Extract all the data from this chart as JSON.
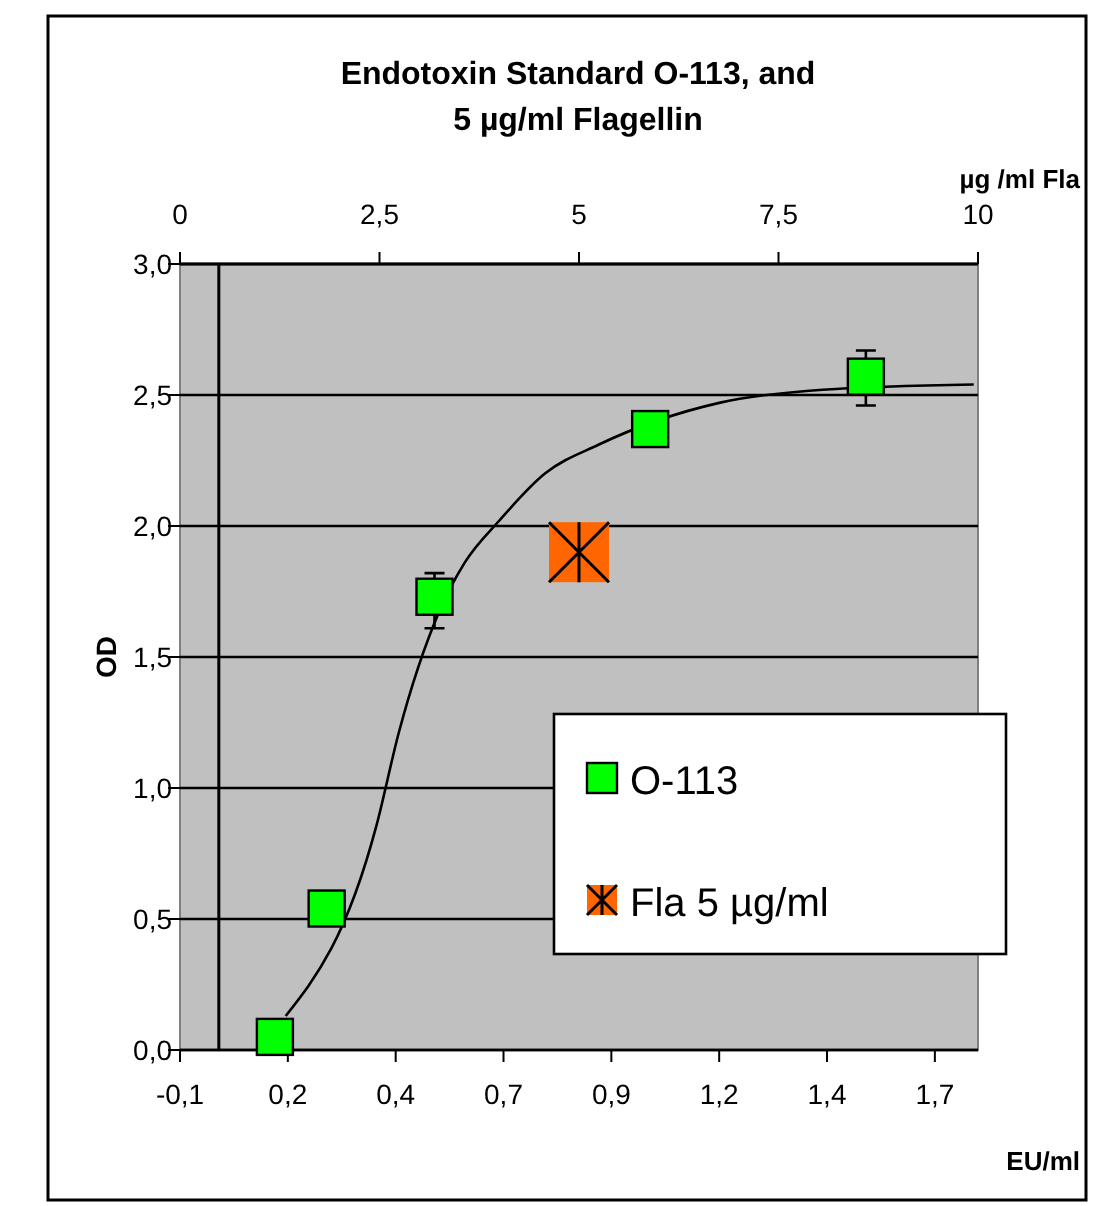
{
  "chart_data": {
    "type": "scatter",
    "title": "Endotoxin  Standard O-113, and\n5 µg/ml Flagellin",
    "xlabel": "EU/ml",
    "ylabel": "OD",
    "x2label": "µg /ml Fla",
    "xlim": [
      -0.09,
      1.76
    ],
    "xticks": [
      {
        "value": -0.09,
        "label": "-0,1"
      },
      {
        "value": 0.16,
        "label": "0,2"
      },
      {
        "value": 0.41,
        "label": "0,4"
      },
      {
        "value": 0.66,
        "label": "0,7"
      },
      {
        "value": 0.91,
        "label": "0,9"
      },
      {
        "value": 1.16,
        "label": "1,2"
      },
      {
        "value": 1.41,
        "label": "1,4"
      },
      {
        "value": 1.66,
        "label": "1,7"
      }
    ],
    "x2lim": [
      0,
      10
    ],
    "x2ticks": [
      0,
      {
        "value": 2.5,
        "label": "2,5"
      },
      5,
      {
        "value": 7.5,
        "label": "7,5"
      },
      10
    ],
    "ylim": [
      0,
      3
    ],
    "yticks": [
      {
        "value": 0,
        "label": "0,0"
      },
      {
        "value": 0.5,
        "label": "0,5"
      },
      {
        "value": 1,
        "label": "1,0"
      },
      {
        "value": 1.5,
        "label": "1,5"
      },
      {
        "value": 2,
        "label": "2,0"
      },
      {
        "value": 2.5,
        "label": "2,5"
      },
      {
        "value": 3,
        "label": "3,0"
      }
    ],
    "grid": "y",
    "legend": "bottom right",
    "ref_lines": [
      {
        "axis": "x",
        "value": 0,
        "color": "#000000"
      }
    ],
    "series": [
      {
        "type": "line",
        "color": "#000000",
        "marker": "none",
        "x": [
          0.155,
          0.25,
          0.366,
          0.417,
          0.51,
          0.57,
          0.65,
          0.756,
          0.88,
          1.0,
          1.16,
          1.4,
          1.75
        ],
        "values": [
          0.13,
          null,
          0.86,
          1.21,
          1.67,
          1.86,
          2.02,
          2.2,
          2.31,
          null,
          2.47,
          2.52,
          2.54
        ]
      },
      {
        "type": "scatter",
        "name": "O-113",
        "color": "#00ff00",
        "marker": "square",
        "x": [
          0.13,
          0.25,
          0.5,
          1.0,
          1.5
        ],
        "values": [
          0.05,
          0.54,
          1.73,
          2.37,
          2.57
        ],
        "errors": [
          null,
          null,
          [
            1.61,
            1.82
          ],
          null,
          [
            2.46,
            2.67
          ]
        ]
      },
      {
        "type": "scatter",
        "name": "Fla 5 µg/ml",
        "color": "#ff6600",
        "marker": "square_asterisk",
        "axis": "x2",
        "x": [
          5
        ],
        "values": [
          1.9
        ]
      }
    ]
  }
}
